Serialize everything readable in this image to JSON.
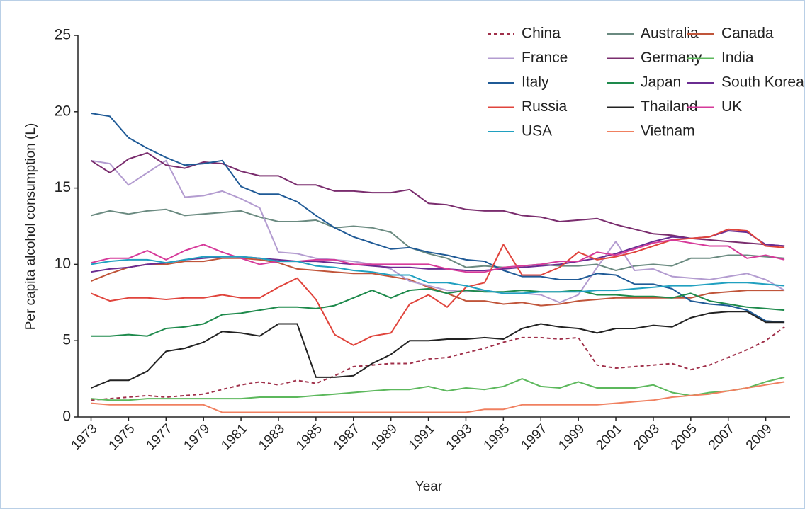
{
  "chart_data": {
    "type": "line",
    "xlabel": "Year",
    "ylabel": "Per capita alcohol consumption (L)",
    "x": [
      1973,
      1974,
      1975,
      1976,
      1977,
      1978,
      1979,
      1980,
      1981,
      1982,
      1983,
      1984,
      1985,
      1986,
      1987,
      1988,
      1989,
      1990,
      1991,
      1992,
      1993,
      1994,
      1995,
      1996,
      1997,
      1998,
      1999,
      2000,
      2001,
      2002,
      2003,
      2004,
      2005,
      2006,
      2007,
      2008,
      2009,
      2010
    ],
    "xlim": [
      1972.3,
      2010.3
    ],
    "xticks": [
      1973,
      1975,
      1977,
      1979,
      1981,
      1983,
      1985,
      1987,
      1989,
      1991,
      1993,
      1995,
      1997,
      1999,
      2001,
      2003,
      2005,
      2007,
      2009
    ],
    "ylim": [
      0,
      25
    ],
    "yticks": [
      0,
      5,
      10,
      15,
      20,
      25
    ],
    "series": [
      {
        "name": "China",
        "color": "#a0304a",
        "dashed": true,
        "values": [
          1.1,
          1.2,
          1.3,
          1.4,
          1.3,
          1.4,
          1.5,
          1.8,
          2.1,
          2.3,
          2.1,
          2.4,
          2.2,
          2.7,
          3.3,
          3.4,
          3.5,
          3.5,
          3.8,
          3.9,
          4.2,
          4.5,
          4.9,
          5.2,
          5.2,
          5.1,
          5.2,
          3.4,
          3.2,
          3.3,
          3.4,
          3.5,
          3.1,
          3.4,
          3.9,
          4.4,
          5.0,
          5.9
        ]
      },
      {
        "name": "Australia",
        "color": "#6a8a80",
        "values": [
          13.2,
          13.5,
          13.3,
          13.5,
          13.6,
          13.2,
          13.3,
          13.4,
          13.5,
          13.1,
          12.8,
          12.8,
          12.9,
          12.4,
          12.5,
          12.4,
          12.1,
          11.1,
          10.7,
          10.4,
          9.8,
          9.9,
          9.8,
          9.9,
          10.0,
          9.9,
          9.9,
          10.0,
          9.6,
          9.9,
          10.0,
          9.9,
          10.4,
          10.4,
          10.6,
          10.6,
          10.5,
          10.4
        ]
      },
      {
        "name": "Canada",
        "color": "#c0553a",
        "values": [
          8.9,
          9.4,
          9.8,
          10.0,
          10.0,
          10.2,
          10.2,
          10.4,
          10.4,
          10.3,
          10.1,
          9.7,
          9.6,
          9.5,
          9.4,
          9.4,
          9.2,
          9.0,
          8.5,
          8.1,
          7.6,
          7.6,
          7.4,
          7.5,
          7.3,
          7.4,
          7.6,
          7.7,
          7.8,
          7.8,
          7.8,
          7.8,
          7.8,
          8.1,
          8.2,
          8.3,
          8.3,
          8.3
        ]
      },
      {
        "name": "France",
        "color": "#b39cd0",
        "values": [
          16.8,
          16.6,
          15.2,
          16.0,
          16.8,
          14.4,
          14.5,
          14.8,
          14.3,
          13.7,
          10.8,
          10.7,
          10.4,
          10.3,
          10.2,
          10.0,
          9.7,
          8.9,
          8.6,
          8.3,
          8.2,
          8.3,
          8.1,
          8.1,
          8.0,
          7.5,
          8.0,
          9.8,
          11.5,
          9.6,
          9.7,
          9.2,
          9.1,
          9.0,
          9.2,
          9.4,
          9.0,
          8.3
        ]
      },
      {
        "name": "Germany",
        "color": "#7a2d6e",
        "values": [
          16.8,
          16.0,
          16.9,
          17.3,
          16.5,
          16.3,
          16.7,
          16.6,
          16.1,
          15.8,
          15.8,
          15.2,
          15.2,
          14.8,
          14.8,
          14.7,
          14.7,
          14.9,
          14.0,
          13.9,
          13.6,
          13.5,
          13.5,
          13.2,
          13.1,
          12.8,
          12.9,
          13.0,
          12.6,
          12.3,
          12.0,
          11.9,
          11.7,
          11.6,
          11.5,
          11.4,
          11.3,
          11.2
        ]
      },
      {
        "name": "India",
        "color": "#5cb85c",
        "values": [
          1.2,
          1.1,
          1.1,
          1.2,
          1.2,
          1.2,
          1.2,
          1.2,
          1.2,
          1.3,
          1.3,
          1.3,
          1.4,
          1.5,
          1.6,
          1.7,
          1.8,
          1.8,
          2.0,
          1.7,
          1.9,
          1.8,
          2.0,
          2.5,
          2.0,
          1.9,
          2.3,
          1.9,
          1.9,
          1.9,
          2.1,
          1.6,
          1.4,
          1.6,
          1.7,
          1.9,
          2.3,
          2.6
        ]
      },
      {
        "name": "Italy",
        "color": "#1f5a96",
        "values": [
          19.9,
          19.7,
          18.3,
          17.6,
          17.0,
          16.5,
          16.6,
          16.8,
          15.1,
          14.6,
          14.6,
          14.1,
          13.2,
          12.4,
          11.8,
          11.4,
          11.0,
          11.1,
          10.8,
          10.6,
          10.3,
          10.2,
          9.6,
          9.2,
          9.2,
          9.0,
          9.0,
          9.4,
          9.3,
          8.7,
          8.7,
          8.4,
          7.6,
          7.4,
          7.3,
          7.0,
          6.3,
          6.2
        ]
      },
      {
        "name": "Japan",
        "color": "#1e8a4c",
        "values": [
          5.3,
          5.3,
          5.4,
          5.3,
          5.8,
          5.9,
          6.1,
          6.7,
          6.8,
          7.0,
          7.2,
          7.2,
          7.1,
          7.3,
          7.8,
          8.3,
          7.8,
          8.3,
          8.4,
          8.1,
          8.3,
          8.2,
          8.2,
          8.3,
          8.2,
          8.2,
          8.3,
          8.0,
          8.0,
          7.9,
          7.9,
          7.8,
          8.1,
          7.6,
          7.4,
          7.2,
          7.1,
          7.0
        ]
      },
      {
        "name": "South Korea",
        "color": "#6a2c91",
        "values": [
          9.5,
          9.7,
          9.8,
          10.0,
          10.1,
          10.3,
          10.4,
          10.5,
          10.5,
          10.4,
          10.3,
          10.2,
          10.2,
          10.1,
          10.0,
          9.9,
          9.8,
          9.8,
          9.7,
          9.7,
          9.6,
          9.6,
          9.7,
          9.8,
          9.9,
          10.0,
          10.2,
          10.4,
          10.7,
          11.1,
          11.5,
          11.8,
          11.7,
          11.8,
          12.2,
          12.1,
          11.3,
          11.2
        ]
      },
      {
        "name": "Russia",
        "color": "#e0443c",
        "values": [
          8.1,
          7.6,
          7.8,
          7.8,
          7.7,
          7.8,
          7.8,
          8.0,
          7.8,
          7.8,
          8.5,
          9.1,
          7.7,
          5.4,
          4.7,
          5.3,
          5.5,
          7.4,
          8.0,
          7.2,
          8.5,
          8.8,
          11.3,
          9.3,
          9.3,
          9.8,
          10.8,
          10.3,
          10.5,
          10.8,
          11.2,
          11.6,
          11.7,
          11.8,
          12.3,
          12.2,
          11.2,
          11.1
        ]
      },
      {
        "name": "Thailand",
        "color": "#222222",
        "values": [
          1.9,
          2.4,
          2.4,
          3.0,
          4.3,
          4.5,
          4.9,
          5.6,
          5.5,
          5.3,
          6.1,
          6.1,
          2.6,
          2.6,
          2.7,
          3.5,
          4.1,
          5.0,
          5.0,
          5.1,
          5.1,
          5.2,
          5.1,
          5.8,
          6.1,
          5.9,
          5.8,
          5.5,
          5.8,
          5.8,
          6.0,
          5.9,
          6.5,
          6.8,
          6.9,
          6.9,
          6.2,
          6.2
        ]
      },
      {
        "name": "UK",
        "color": "#d63a9a",
        "values": [
          10.1,
          10.4,
          10.4,
          10.9,
          10.3,
          10.9,
          11.3,
          10.8,
          10.4,
          10.0,
          10.2,
          10.2,
          10.3,
          10.3,
          10.0,
          10.0,
          10.0,
          10.0,
          10.0,
          9.7,
          9.5,
          9.5,
          9.8,
          9.9,
          10.0,
          10.2,
          10.2,
          10.8,
          10.6,
          11.0,
          11.4,
          11.6,
          11.4,
          11.2,
          11.2,
          10.4,
          10.6,
          10.3
        ]
      },
      {
        "name": "USA",
        "color": "#20a0c0",
        "values": [
          10.0,
          10.2,
          10.3,
          10.3,
          10.1,
          10.3,
          10.5,
          10.5,
          10.5,
          10.4,
          10.2,
          10.2,
          9.9,
          9.8,
          9.6,
          9.5,
          9.3,
          9.3,
          8.8,
          8.8,
          8.6,
          8.3,
          8.1,
          8.1,
          8.2,
          8.2,
          8.2,
          8.3,
          8.3,
          8.4,
          8.5,
          8.6,
          8.6,
          8.7,
          8.8,
          8.8,
          8.7,
          8.6
        ]
      },
      {
        "name": "Vietnam",
        "color": "#f08060",
        "values": [
          0.9,
          0.8,
          0.8,
          0.8,
          0.8,
          0.8,
          0.8,
          0.3,
          0.3,
          0.3,
          0.3,
          0.3,
          0.3,
          0.3,
          0.3,
          0.3,
          0.3,
          0.3,
          0.3,
          0.3,
          0.3,
          0.5,
          0.5,
          0.8,
          0.8,
          0.8,
          0.8,
          0.8,
          0.9,
          1.0,
          1.1,
          1.3,
          1.4,
          1.5,
          1.7,
          1.9,
          2.1,
          2.3
        ]
      }
    ]
  }
}
